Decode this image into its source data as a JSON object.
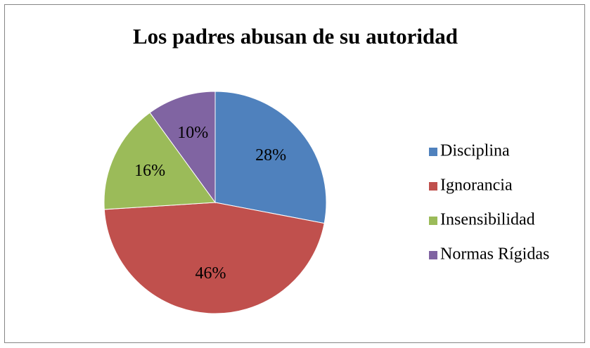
{
  "chart_data": {
    "type": "pie",
    "title": "Los padres abusan de su autoridad",
    "categories": [
      "Disciplina",
      "Ignorancia",
      "Insensibilidad",
      "Normas Rígidas"
    ],
    "values": [
      28,
      46,
      16,
      10
    ],
    "value_labels": [
      "28%",
      "46%",
      "16%",
      "10%"
    ],
    "colors": [
      "#4f81bd",
      "#c0504d",
      "#9bbb59",
      "#8064a2"
    ],
    "legend": "right"
  }
}
